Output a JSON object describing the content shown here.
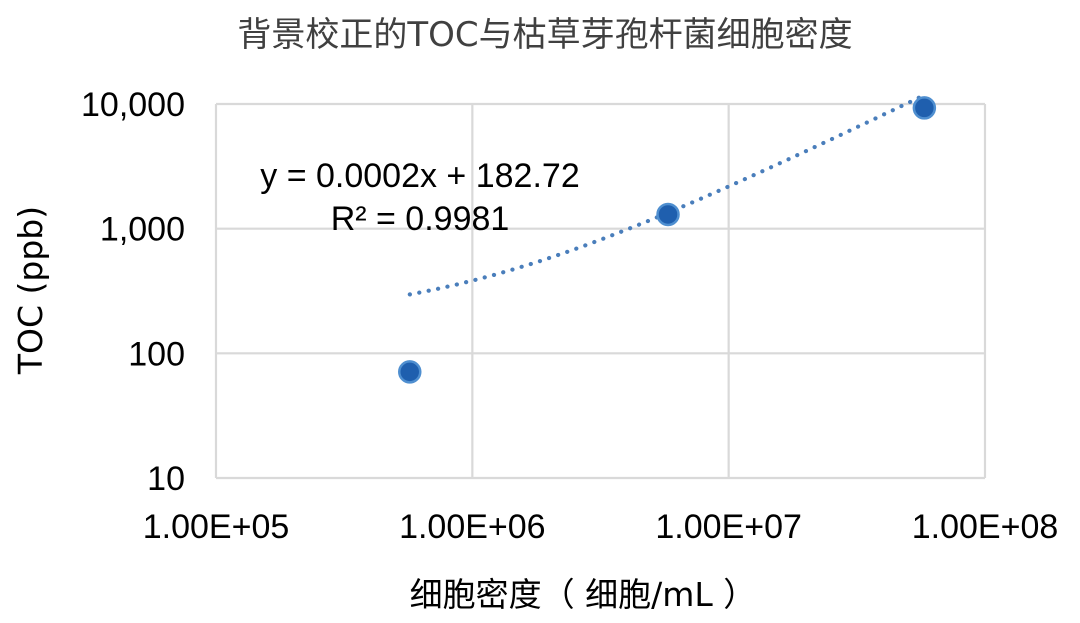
{
  "chart_data": {
    "type": "scatter",
    "title": "背景校正的TOC与枯草芽孢杆菌细胞密度",
    "xlabel": "细胞密度（ 细胞/mL ）",
    "ylabel": "TOC (ppb)",
    "x_scale": "log",
    "y_scale": "log",
    "xlim": [
      100000,
      100000000
    ],
    "ylim": [
      10,
      10000
    ],
    "x_ticks": [
      {
        "value": 100000,
        "label": "1.00E+05"
      },
      {
        "value": 1000000,
        "label": "1.00E+06"
      },
      {
        "value": 10000000,
        "label": "1.00E+07"
      },
      {
        "value": 100000000,
        "label": "1.00E+08"
      }
    ],
    "y_ticks": [
      {
        "value": 10,
        "label": "10"
      },
      {
        "value": 100,
        "label": "100"
      },
      {
        "value": 1000,
        "label": "1,000"
      },
      {
        "value": 10000,
        "label": "10,000"
      }
    ],
    "grid": true,
    "points": [
      {
        "x": 570000,
        "y": 71
      },
      {
        "x": 5800000,
        "y": 1300
      },
      {
        "x": 58000000,
        "y": 9300
      }
    ],
    "trendline": {
      "type": "linear",
      "slope": 0.0002,
      "intercept": 182.72,
      "x_range": [
        570000,
        58000000
      ],
      "equation_label": "y = 0.0002x + 182.72",
      "r2_label": "R² = 0.9981"
    },
    "colors": {
      "point_fill": "#1f5fae",
      "point_stroke": "#4f8fd0",
      "trendline": "#4a7ebb",
      "grid": "#d9d9d9",
      "title": "#404040"
    }
  }
}
